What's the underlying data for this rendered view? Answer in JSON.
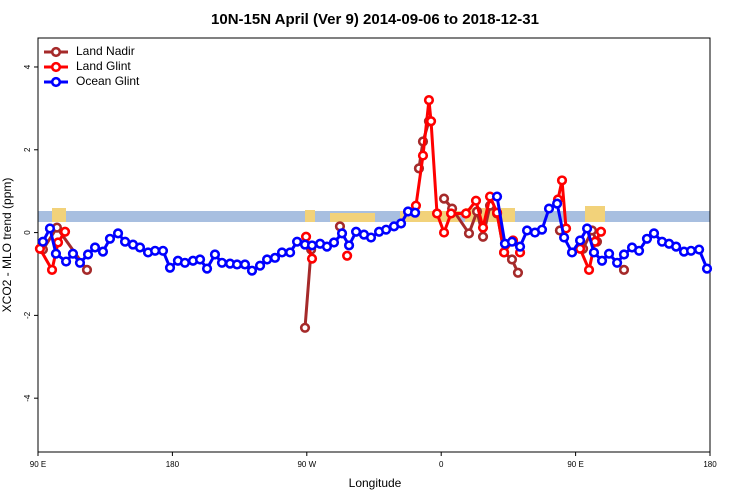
{
  "chart_data": {
    "type": "line",
    "title": "10N-15N April (Ver 9)   2014-09-06 to 2018-12-31",
    "x_label": "Longitude",
    "y_label": "XCO2 - MLO trend (ppm)",
    "xlim": [
      90,
      540
    ],
    "ylim": [
      -5.3,
      4.7
    ],
    "xticks": [
      {
        "value": 90,
        "label": "90 E"
      },
      {
        "value": 180,
        "label": "180"
      },
      {
        "value": 270,
        "label": "90 W"
      },
      {
        "value": 360,
        "label": "0"
      },
      {
        "value": 450,
        "label": "90 E"
      },
      {
        "value": 540,
        "label": "180"
      }
    ],
    "yticks": [
      -4,
      -2,
      0,
      2,
      4
    ],
    "legend": "top-left",
    "series": [
      {
        "name": "Land Nadir",
        "color": "#a52a2a",
        "x": [
          93.3,
          102.7,
          122.8,
          null,
          268.8,
          272.9,
          null,
          292.2,
          null,
          345.1,
          347.8,
          351.8,
          null,
          361.9,
          367.3,
          378.6,
          384,
          388,
          392.7,
          397.4,
          402.1,
          407.4,
          411.4,
          null,
          439.5,
          null,
          455,
          461,
          464.3,
          null,
          482.4
        ],
        "values": [
          -0.41,
          0.12,
          -0.9,
          null,
          -2.3,
          -0.41,
          null,
          0.15,
          null,
          1.55,
          2.2,
          2.69,
          null,
          0.82,
          0.58,
          -0.02,
          0.51,
          -0.1,
          0.65,
          0.46,
          -0.48,
          -0.65,
          -0.97,
          null,
          0.05,
          null,
          -0.39,
          0.05,
          -0.22,
          null,
          -0.9
        ]
      },
      {
        "name": "Land Glint",
        "color": "#ff0000",
        "x": [
          91.3,
          99.4,
          103.4,
          108.1,
          null,
          269.5,
          273.5,
          null,
          297,
          null,
          343.1,
          347.8,
          351.8,
          353.2,
          357.2,
          361.9,
          366.6,
          376.6,
          383.3,
          388,
          392.7,
          397.4,
          402.1,
          408.1,
          412.8,
          null,
          438.2,
          440.9,
          443.6,
          null,
          453,
          459,
          463,
          467
        ],
        "values": [
          -0.39,
          -0.9,
          -0.24,
          0.02,
          null,
          -0.1,
          -0.63,
          null,
          -0.56,
          null,
          0.65,
          1.86,
          3.2,
          2.69,
          0.46,
          0,
          0.46,
          0.46,
          0.77,
          0.12,
          0.87,
          0.48,
          -0.48,
          -0.19,
          -0.48,
          null,
          0.8,
          1.26,
          0.1,
          null,
          -0.39,
          -0.9,
          -0.22,
          0.02
        ]
      },
      {
        "name": "Ocean Glint",
        "color": "#0000ff",
        "x": [
          93.3,
          98,
          102,
          108.8,
          113.4,
          118.1,
          123.5,
          128.2,
          133.5,
          138.2,
          143.6,
          148.3,
          153.6,
          158.3,
          163.7,
          168.4,
          173.7,
          178.4,
          183.7,
          188.4,
          193.8,
          198.5,
          203.2,
          208.5,
          213.2,
          218.6,
          223.3,
          228.6,
          233.3,
          238.7,
          243.4,
          248.7,
          253.4,
          258.8,
          263.5,
          268.8,
          273.5,
          278.9,
          283.5,
          288.2,
          293.6,
          298.3,
          303,
          308.3,
          313,
          318.4,
          323.1,
          328.4,
          333.1,
          337.8,
          342.5,
          null,
          397.4,
          402.7,
          407.4,
          412.8,
          417.5,
          422.8,
          427.5,
          432.2,
          437.6,
          442.3,
          447.6,
          453,
          457.7,
          462.3,
          467.7,
          472.4,
          477.8,
          482.4,
          487.8,
          492.5,
          497.8,
          502.5,
          507.9,
          512.6,
          517.3,
          522.6,
          527.3,
          532.7,
          538
        ],
        "values": [
          -0.22,
          0.1,
          -0.51,
          -0.7,
          -0.51,
          -0.73,
          -0.53,
          -0.36,
          -0.46,
          -0.15,
          -0.02,
          -0.22,
          -0.29,
          -0.36,
          -0.48,
          -0.44,
          -0.44,
          -0.85,
          -0.68,
          -0.73,
          -0.68,
          -0.65,
          -0.87,
          -0.53,
          -0.73,
          -0.75,
          -0.77,
          -0.77,
          -0.92,
          -0.8,
          -0.65,
          -0.61,
          -0.48,
          -0.48,
          -0.22,
          -0.29,
          -0.31,
          -0.27,
          -0.34,
          -0.24,
          -0.02,
          -0.31,
          0.02,
          -0.05,
          -0.12,
          0.02,
          0.07,
          0.15,
          0.22,
          0.51,
          0.48,
          null,
          0.87,
          -0.27,
          -0.22,
          -0.34,
          0.05,
          0,
          0.07,
          0.58,
          0.7,
          -0.12,
          -0.48,
          -0.19,
          0.1,
          -0.48,
          -0.68,
          -0.51,
          -0.73,
          -0.53,
          -0.36,
          -0.44,
          -0.15,
          -0.02,
          -0.22,
          -0.27,
          -0.34,
          -0.46,
          -0.44,
          -0.41,
          -0.87
        ]
      }
    ]
  }
}
